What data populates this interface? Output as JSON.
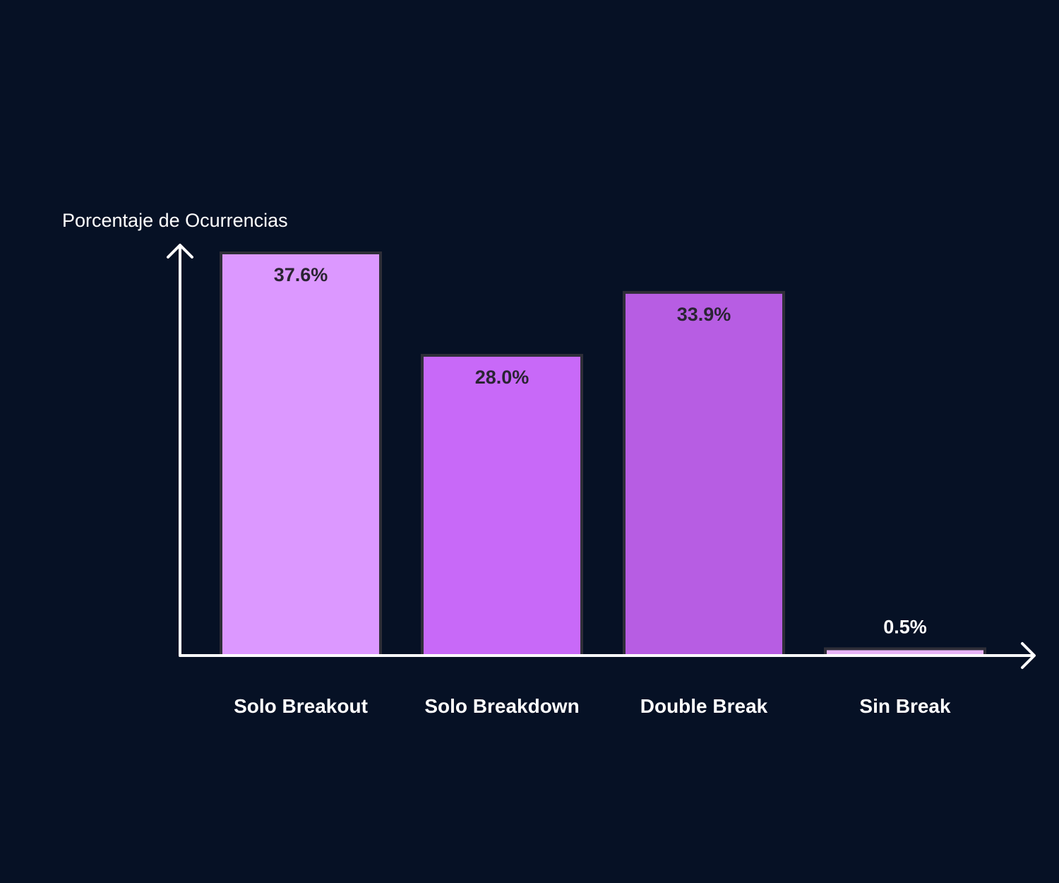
{
  "chart_data": {
    "type": "bar",
    "ylabel": "Porcentaje de Ocurrencias",
    "categories": [
      "Solo Breakout",
      "Solo Breakdown",
      "Double Break",
      "Sin Break"
    ],
    "values": [
      37.6,
      28.0,
      33.9,
      0.5
    ],
    "data_labels": [
      "37.6%",
      "28.0%",
      "33.9%",
      "0.5%"
    ],
    "ylim": [
      0,
      37.6
    ],
    "grid": false,
    "legend": "none"
  },
  "colors": {
    "background": "#061125",
    "axis": "#ffffff",
    "bar_outline": "#2e2e38",
    "bars": [
      "#dc98ff",
      "#c869f8",
      "#b75de3",
      "#e7b4f7"
    ],
    "label_inside": "#2a2433",
    "label_outside": "#ffffff"
  }
}
